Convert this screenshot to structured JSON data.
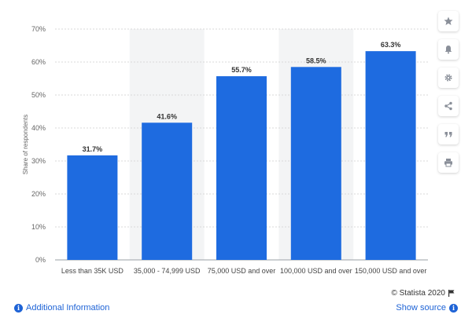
{
  "chart_data": {
    "type": "bar",
    "categories": [
      "Less than 35K USD",
      "35,000 - 74,999 USD",
      "75,000 USD and over",
      "100,000 USD and over",
      "150,000 USD and over"
    ],
    "values": [
      31.7,
      41.6,
      55.7,
      58.5,
      63.3
    ],
    "value_labels": [
      "31.7%",
      "41.6%",
      "55.7%",
      "58.5%",
      "63.3%"
    ],
    "ylabel": "Share of respondents",
    "xlabel": "",
    "ylim": [
      0,
      70
    ],
    "yticks": [
      0,
      10,
      20,
      30,
      40,
      50,
      60,
      70
    ],
    "ytick_labels": [
      "0%",
      "10%",
      "20%",
      "30%",
      "40%",
      "50%",
      "60%",
      "70%"
    ],
    "grid": true,
    "alternating_bands": true,
    "bar_color": "#1e6be0",
    "band_color": "#f3f4f5",
    "grid_color": "#d9d9d9"
  },
  "toolbar": {
    "buttons": [
      {
        "name": "star-icon"
      },
      {
        "name": "bell-icon"
      },
      {
        "name": "gear-icon"
      },
      {
        "name": "share-icon"
      },
      {
        "name": "quote-icon"
      },
      {
        "name": "print-icon"
      }
    ]
  },
  "footer": {
    "credit": "© Statista 2020",
    "additional_info": "Additional Information",
    "show_source": "Show source"
  },
  "colors": {
    "link": "#1e63d6",
    "accent": "#1e6be0"
  }
}
